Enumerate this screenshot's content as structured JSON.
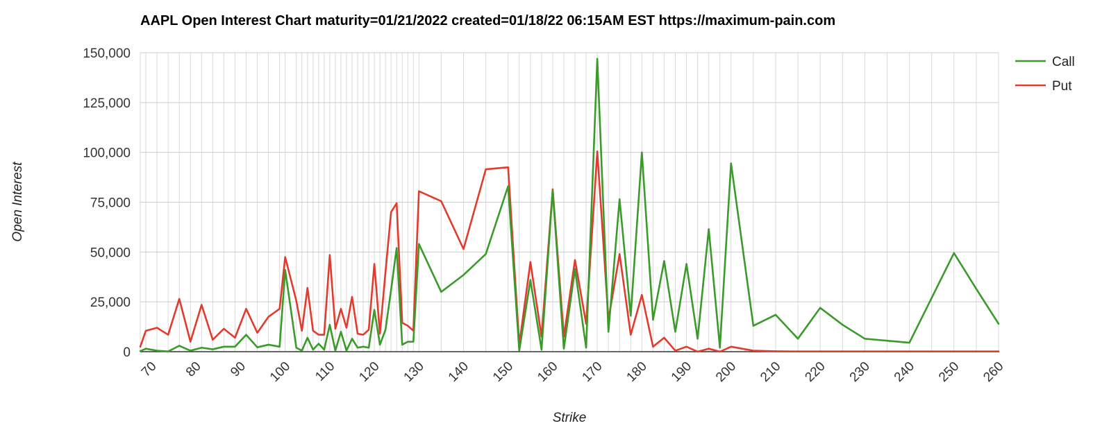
{
  "chart_data": {
    "type": "line",
    "title": "AAPL Open Interest Chart maturity=01/21/2022 created=01/18/22 06:15AM EST https://maximum-pain.com",
    "xlabel": "Strike",
    "ylabel": "Open Interest",
    "xlim": [
      67.5,
      260
    ],
    "ylim": [
      0,
      150000
    ],
    "y_ticks": [
      0,
      25000,
      50000,
      75000,
      100000,
      125000,
      150000
    ],
    "y_tick_labels": [
      "0",
      "25,000",
      "50,000",
      "75,000",
      "100,000",
      "125,000",
      "150,000"
    ],
    "x_tick_values": [
      70,
      80,
      90,
      100,
      110,
      120,
      130,
      140,
      150,
      160,
      170,
      180,
      190,
      200,
      210,
      220,
      230,
      240,
      250,
      260
    ],
    "x_tick_labels": [
      "70",
      "80",
      "90",
      "100",
      "110",
      "120",
      "130",
      "140",
      "150",
      "160",
      "170",
      "180",
      "190",
      "200",
      "210",
      "220",
      "230",
      "240",
      "250",
      "260"
    ],
    "grid": true,
    "legend_position": "right",
    "x": [
      67.5,
      68.75,
      71.25,
      73.75,
      76.25,
      78.75,
      81.25,
      83.75,
      86.25,
      88.75,
      91.25,
      93.75,
      96.25,
      98.75,
      100,
      102.5,
      103.75,
      105,
      106.25,
      107.5,
      108.75,
      110,
      111.25,
      112.5,
      113.75,
      115,
      116.25,
      117.5,
      118.75,
      120,
      121.25,
      122.5,
      123.75,
      125,
      126.25,
      127.5,
      128.75,
      130,
      135,
      140,
      145,
      150,
      152.5,
      155,
      157.5,
      160,
      162.5,
      165,
      167.5,
      170,
      172.5,
      175,
      177.5,
      180,
      182.5,
      185,
      187.5,
      190,
      192.5,
      195,
      197.5,
      200,
      205,
      210,
      215,
      220,
      225,
      230,
      235,
      240,
      245,
      250,
      255,
      260
    ],
    "series": [
      {
        "name": "Call",
        "color": "#3a9a2a",
        "values": [
          300,
          1500,
          500,
          100,
          3000,
          500,
          2000,
          1200,
          2500,
          2500,
          8500,
          2200,
          3500,
          2500,
          41000,
          2000,
          500,
          7000,
          1000,
          4000,
          1000,
          13500,
          500,
          10000,
          500,
          6500,
          2000,
          2500,
          2000,
          21000,
          3500,
          11000,
          31000,
          52000,
          3500,
          5000,
          5000,
          54000,
          30000,
          38500,
          49000,
          83000,
          500,
          36000,
          1000,
          81000,
          1500,
          41500,
          2000,
          147000,
          10000,
          76500,
          18000,
          100000,
          16000,
          45500,
          10000,
          44000,
          6500,
          61500,
          2000,
          94500,
          13000,
          18500,
          6500,
          22000,
          13500,
          6500,
          5500,
          4500,
          27000,
          49500,
          31500,
          14000
        ]
      },
      {
        "name": "Put",
        "color": "#e23b2e",
        "values": [
          2500,
          10500,
          12000,
          8500,
          26500,
          5000,
          23500,
          6000,
          11500,
          7000,
          21500,
          9500,
          17500,
          21500,
          47500,
          25500,
          10500,
          32000,
          10500,
          8500,
          8500,
          48500,
          11500,
          21500,
          12000,
          27500,
          9000,
          8500,
          11000,
          44000,
          9000,
          40000,
          70000,
          74500,
          14500,
          13000,
          10500,
          80500,
          75500,
          51500,
          91500,
          92500,
          3500,
          45000,
          7500,
          81500,
          7500,
          46000,
          14000,
          100500,
          16000,
          49000,
          8500,
          28500,
          2500,
          7000,
          500,
          2500,
          0,
          1500,
          0,
          2500,
          500,
          200,
          100,
          100,
          100,
          100,
          100,
          100,
          100,
          100,
          100,
          100
        ]
      }
    ]
  }
}
